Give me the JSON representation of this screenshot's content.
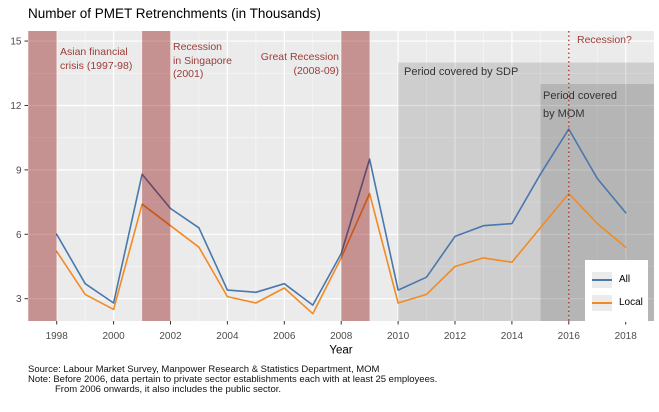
{
  "title": "Number of PMET Retrenchments (in Thousands)",
  "colors": {
    "all_line": "#4878ac",
    "local_line": "#f28a25",
    "recession_band": "rgba(139,0,0,0.38)",
    "coverage_overlay": "rgba(0,0,0,0.12)",
    "vline": "#a0392b",
    "recession_text": "#9c3c38",
    "panel_bg": "#ebebeb",
    "axis_text": "#4d4d4d"
  },
  "chart_data": {
    "type": "line",
    "title": "Number of PMET Retrenchments (in Thousands)",
    "xlabel": "Year",
    "ylabel": "",
    "x": [
      1998,
      1999,
      2000,
      2001,
      2002,
      2003,
      2004,
      2005,
      2006,
      2007,
      2008,
      2009,
      2010,
      2011,
      2012,
      2013,
      2014,
      2015,
      2016,
      2017,
      2018
    ],
    "series": [
      {
        "name": "All",
        "color": "#4878ac",
        "values": [
          6.0,
          3.7,
          2.8,
          8.8,
          7.2,
          6.3,
          3.4,
          3.3,
          3.7,
          2.7,
          5.1,
          9.5,
          3.4,
          4.0,
          5.9,
          6.4,
          6.5,
          8.8,
          10.9,
          8.6,
          7.0
        ]
      },
      {
        "name": "Local",
        "color": "#f28a25",
        "values": [
          5.2,
          3.2,
          2.5,
          7.4,
          6.4,
          5.4,
          3.1,
          2.8,
          3.5,
          2.3,
          4.9,
          7.9,
          2.8,
          3.2,
          4.5,
          4.9,
          4.7,
          6.3,
          7.9,
          6.5,
          5.4
        ]
      }
    ],
    "xlim": [
      1997,
      2019
    ],
    "ylim": [
      2.0,
      15.4
    ],
    "x_ticks": [
      1998,
      2000,
      2002,
      2004,
      2006,
      2008,
      2010,
      2012,
      2014,
      2016,
      2018
    ],
    "y_ticks": [
      3,
      6,
      9,
      12,
      15
    ],
    "grid": "white major and minor gridlines on gray panel",
    "legend_position": "inset bottom-right",
    "recession_bands": [
      {
        "x1": 1997,
        "x2": 1998,
        "label": "Asian financial crisis (1997-98)",
        "lines": [
          "Asian financial",
          "crisis (1997-98)"
        ]
      },
      {
        "x1": 2001,
        "x2": 2002,
        "label": "Recession in Singapore (2001)",
        "lines": [
          "Recession",
          "in Singapore",
          "(2001)"
        ]
      },
      {
        "x1": 2008,
        "x2": 2009,
        "label": "Great Recession (2008-09)",
        "lines": [
          "Great Recession",
          "(2008-09)"
        ]
      }
    ],
    "coverage_regions": [
      {
        "x1": 2010,
        "x2": 2019,
        "y_top": 14.0,
        "label": "Period covered by SDP",
        "lines": [
          "Period covered by SDP"
        ]
      },
      {
        "x1": 2015,
        "x2": 2019,
        "y_top": 13.0,
        "label": "Period covered by MOM",
        "lines": [
          "Period covered",
          "by MOM"
        ]
      }
    ],
    "vline": {
      "x": 2016,
      "label": "Recession?"
    }
  },
  "legend": {
    "items": [
      {
        "label": "All"
      },
      {
        "label": "Local"
      }
    ]
  },
  "footer": {
    "line1": "Source: Labour Market Survey, Manpower Research & Statistics Department, MOM",
    "line2": "Note: Before 2006, data pertain to private sector establishments each with at least 25 employees.",
    "line3": "From 2006 onwards, it also includes the public sector."
  }
}
